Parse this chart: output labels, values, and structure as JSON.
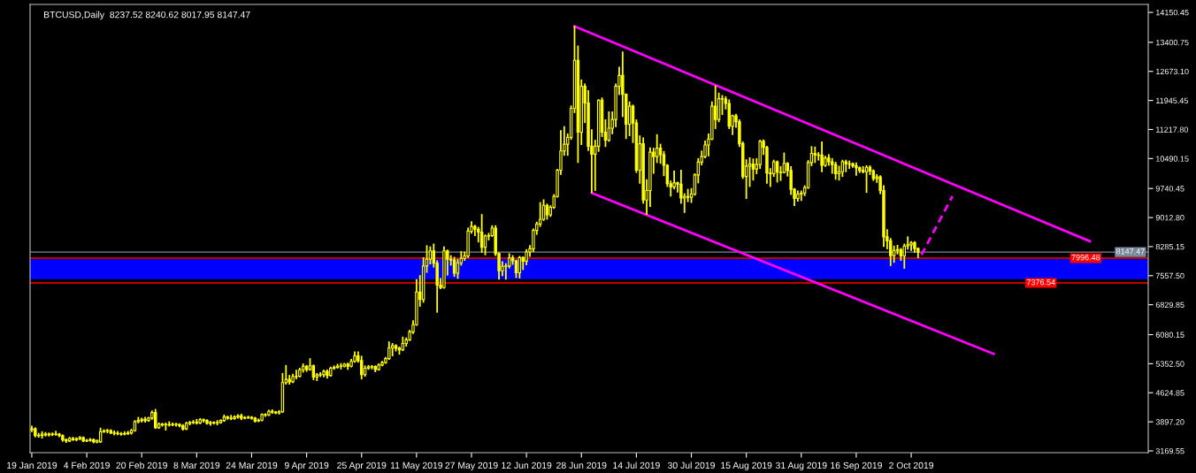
{
  "chart_data": {
    "type": "candlestick",
    "title": "BTCUSD,Daily  8237.52 8240.62 8017.95 8147.47",
    "color": "#ffff00",
    "x": [
      "2019-01-19",
      "2019-01-20",
      "2019-01-21",
      "2019-01-22",
      "2019-01-23",
      "2019-01-24",
      "2019-01-25",
      "2019-01-26",
      "2019-01-27",
      "2019-01-28",
      "2019-01-29",
      "2019-01-30",
      "2019-01-31",
      "2019-02-01",
      "2019-02-02",
      "2019-02-03",
      "2019-02-04",
      "2019-02-05",
      "2019-02-06",
      "2019-02-07",
      "2019-02-08",
      "2019-02-09",
      "2019-02-10",
      "2019-02-11",
      "2019-02-12",
      "2019-02-13",
      "2019-02-14",
      "2019-02-15",
      "2019-02-16",
      "2019-02-17",
      "2019-02-18",
      "2019-02-19",
      "2019-02-20",
      "2019-02-21",
      "2019-02-22",
      "2019-02-23",
      "2019-02-24",
      "2019-02-25",
      "2019-02-26",
      "2019-02-27",
      "2019-02-28",
      "2019-03-01",
      "2019-03-02",
      "2019-03-03",
      "2019-03-04",
      "2019-03-05",
      "2019-03-06",
      "2019-03-07",
      "2019-03-08",
      "2019-03-09",
      "2019-03-10",
      "2019-03-11",
      "2019-03-12",
      "2019-03-13",
      "2019-03-14",
      "2019-03-15",
      "2019-03-16",
      "2019-03-17",
      "2019-03-18",
      "2019-03-19",
      "2019-03-20",
      "2019-03-21",
      "2019-03-22",
      "2019-03-23",
      "2019-03-24",
      "2019-03-25",
      "2019-03-26",
      "2019-03-27",
      "2019-03-28",
      "2019-03-29",
      "2019-03-30",
      "2019-03-31",
      "2019-04-01",
      "2019-04-02",
      "2019-04-03",
      "2019-04-04",
      "2019-04-05",
      "2019-04-06",
      "2019-04-07",
      "2019-04-08",
      "2019-04-09",
      "2019-04-10",
      "2019-04-11",
      "2019-04-12",
      "2019-04-13",
      "2019-04-14",
      "2019-04-15",
      "2019-04-16",
      "2019-04-17",
      "2019-04-18",
      "2019-04-19",
      "2019-04-20",
      "2019-04-21",
      "2019-04-22",
      "2019-04-23",
      "2019-04-24",
      "2019-04-25",
      "2019-04-26",
      "2019-04-27",
      "2019-04-28",
      "2019-04-29",
      "2019-04-30",
      "2019-05-01",
      "2019-05-02",
      "2019-05-03",
      "2019-05-04",
      "2019-05-05",
      "2019-05-06",
      "2019-05-07",
      "2019-05-08",
      "2019-05-09",
      "2019-05-10",
      "2019-05-11",
      "2019-05-12",
      "2019-05-13",
      "2019-05-14",
      "2019-05-15",
      "2019-05-16",
      "2019-05-17",
      "2019-05-18",
      "2019-05-19",
      "2019-05-20",
      "2019-05-21",
      "2019-05-22",
      "2019-05-23",
      "2019-05-24",
      "2019-05-25",
      "2019-05-26",
      "2019-05-27",
      "2019-05-28",
      "2019-05-29",
      "2019-05-30",
      "2019-05-31",
      "2019-06-01",
      "2019-06-02",
      "2019-06-03",
      "2019-06-04",
      "2019-06-05",
      "2019-06-06",
      "2019-06-07",
      "2019-06-08",
      "2019-06-09",
      "2019-06-10",
      "2019-06-11",
      "2019-06-12",
      "2019-06-13",
      "2019-06-14",
      "2019-06-15",
      "2019-06-16",
      "2019-06-17",
      "2019-06-18",
      "2019-06-19",
      "2019-06-20",
      "2019-06-21",
      "2019-06-22",
      "2019-06-23",
      "2019-06-24",
      "2019-06-25",
      "2019-06-26",
      "2019-06-27",
      "2019-06-28",
      "2019-06-29",
      "2019-06-30",
      "2019-07-01",
      "2019-07-02",
      "2019-07-03",
      "2019-07-04",
      "2019-07-05",
      "2019-07-06",
      "2019-07-07",
      "2019-07-08",
      "2019-07-09",
      "2019-07-10",
      "2019-07-11",
      "2019-07-12",
      "2019-07-13",
      "2019-07-14",
      "2019-07-15",
      "2019-07-16",
      "2019-07-17",
      "2019-07-18",
      "2019-07-19",
      "2019-07-20",
      "2019-07-21",
      "2019-07-22",
      "2019-07-23",
      "2019-07-24",
      "2019-07-25",
      "2019-07-26",
      "2019-07-27",
      "2019-07-28",
      "2019-07-29",
      "2019-07-30",
      "2019-07-31",
      "2019-08-01",
      "2019-08-02",
      "2019-08-03",
      "2019-08-04",
      "2019-08-05",
      "2019-08-06",
      "2019-08-07",
      "2019-08-08",
      "2019-08-09",
      "2019-08-10",
      "2019-08-11",
      "2019-08-12",
      "2019-08-13",
      "2019-08-14",
      "2019-08-15",
      "2019-08-16",
      "2019-08-17",
      "2019-08-18",
      "2019-08-19",
      "2019-08-20",
      "2019-08-21",
      "2019-08-22",
      "2019-08-23",
      "2019-08-24",
      "2019-08-25",
      "2019-08-26",
      "2019-08-27",
      "2019-08-28",
      "2019-08-29",
      "2019-08-30",
      "2019-08-31",
      "2019-09-01",
      "2019-09-02",
      "2019-09-03",
      "2019-09-04",
      "2019-09-05",
      "2019-09-06",
      "2019-09-07",
      "2019-09-08",
      "2019-09-09",
      "2019-09-10",
      "2019-09-11",
      "2019-09-12",
      "2019-09-13",
      "2019-09-14",
      "2019-09-15",
      "2019-09-16",
      "2019-09-17",
      "2019-09-18",
      "2019-09-19",
      "2019-09-20",
      "2019-09-21",
      "2019-09-22",
      "2019-09-23",
      "2019-09-24",
      "2019-09-25",
      "2019-09-26",
      "2019-09-27",
      "2019-09-28",
      "2019-09-29",
      "2019-09-30",
      "2019-10-01",
      "2019-10-02",
      "2019-10-03",
      "2019-10-04"
    ],
    "ohlc": [
      [
        3700,
        3780,
        3660,
        3720
      ],
      [
        3720,
        3740,
        3530,
        3550
      ],
      [
        3550,
        3600,
        3520,
        3560
      ],
      [
        3560,
        3640,
        3500,
        3590
      ],
      [
        3590,
        3620,
        3550,
        3570
      ],
      [
        3570,
        3610,
        3550,
        3590
      ],
      [
        3590,
        3610,
        3560,
        3580
      ],
      [
        3580,
        3650,
        3570,
        3590
      ],
      [
        3590,
        3600,
        3530,
        3550
      ],
      [
        3550,
        3560,
        3420,
        3450
      ],
      [
        3450,
        3460,
        3390,
        3420
      ],
      [
        3420,
        3500,
        3410,
        3480
      ],
      [
        3480,
        3500,
        3440,
        3450
      ],
      [
        3450,
        3490,
        3430,
        3470
      ],
      [
        3470,
        3520,
        3460,
        3500
      ],
      [
        3500,
        3510,
        3410,
        3420
      ],
      [
        3420,
        3450,
        3410,
        3430
      ],
      [
        3430,
        3470,
        3420,
        3450
      ],
      [
        3450,
        3460,
        3380,
        3400
      ],
      [
        3390,
        3430,
        3380,
        3430
      ],
      [
        3400,
        3730,
        3390,
        3650
      ],
      [
        3650,
        3690,
        3640,
        3670
      ],
      [
        3670,
        3700,
        3630,
        3680
      ],
      [
        3680,
        3690,
        3610,
        3620
      ],
      [
        3620,
        3660,
        3580,
        3610
      ],
      [
        3610,
        3650,
        3580,
        3600
      ],
      [
        3600,
        3620,
        3570,
        3590
      ],
      [
        3590,
        3640,
        3580,
        3600
      ],
      [
        3600,
        3650,
        3590,
        3620
      ],
      [
        3620,
        3700,
        3600,
        3680
      ],
      [
        3680,
        3920,
        3670,
        3900
      ],
      [
        3900,
        4000,
        3880,
        3930
      ],
      [
        3930,
        3980,
        3900,
        3960
      ],
      [
        3960,
        4000,
        3900,
        3930
      ],
      [
        3930,
        4000,
        3920,
        3990
      ],
      [
        3990,
        4160,
        3970,
        4130
      ],
      [
        4130,
        4200,
        3740,
        3750
      ],
      [
        3750,
        3860,
        3740,
        3840
      ],
      [
        3840,
        3850,
        3800,
        3820
      ],
      [
        3820,
        3860,
        3700,
        3830
      ],
      [
        3830,
        3890,
        3800,
        3820
      ],
      [
        3820,
        3860,
        3810,
        3830
      ],
      [
        3830,
        3850,
        3800,
        3840
      ],
      [
        3830,
        3840,
        3780,
        3800
      ],
      [
        3800,
        3820,
        3700,
        3720
      ],
      [
        3720,
        3880,
        3710,
        3860
      ],
      [
        3860,
        3900,
        3830,
        3880
      ],
      [
        3880,
        3920,
        3860,
        3890
      ],
      [
        3890,
        3950,
        3850,
        3870
      ],
      [
        3870,
        3970,
        3860,
        3950
      ],
      [
        3950,
        3960,
        3900,
        3930
      ],
      [
        3930,
        3940,
        3850,
        3860
      ],
      [
        3860,
        3900,
        3820,
        3880
      ],
      [
        3880,
        3890,
        3850,
        3870
      ],
      [
        3870,
        3920,
        3830,
        3880
      ],
      [
        3880,
        3940,
        3870,
        3930
      ],
      [
        3930,
        4060,
        3920,
        4020
      ],
      [
        4020,
        4030,
        3970,
        3990
      ],
      [
        3990,
        4050,
        3960,
        3980
      ],
      [
        3980,
        4040,
        3970,
        4020
      ],
      [
        4020,
        4070,
        4000,
        4050
      ],
      [
        4050,
        4080,
        3960,
        3990
      ],
      [
        3990,
        4020,
        3980,
        4000
      ],
      [
        4000,
        4030,
        3990,
        4010
      ],
      [
        4010,
        4020,
        3970,
        3990
      ],
      [
        3990,
        4000,
        3900,
        3920
      ],
      [
        3920,
        3960,
        3910,
        3940
      ],
      [
        3940,
        4090,
        3930,
        4080
      ],
      [
        4080,
        4090,
        4040,
        4070
      ],
      [
        4070,
        4180,
        4060,
        4160
      ],
      [
        4160,
        4190,
        4120,
        4140
      ],
      [
        4140,
        4150,
        4110,
        4120
      ],
      [
        4120,
        4170,
        4100,
        4150
      ],
      [
        4150,
        5100,
        4140,
        4880
      ],
      [
        4880,
        5300,
        4850,
        4960
      ],
      [
        4960,
        5050,
        4850,
        4900
      ],
      [
        4900,
        5080,
        4890,
        5030
      ],
      [
        5030,
        5180,
        4980,
        5040
      ],
      [
        5040,
        5230,
        5030,
        5200
      ],
      [
        5200,
        5340,
        5150,
        5290
      ],
      [
        5290,
        5300,
        5170,
        5210
      ],
      [
        5210,
        5470,
        5200,
        5300
      ],
      [
        5300,
        5310,
        4960,
        5020
      ],
      [
        5020,
        5100,
        4940,
        5070
      ],
      [
        5070,
        5120,
        5040,
        5080
      ],
      [
        5080,
        5180,
        5030,
        5160
      ],
      [
        5160,
        5190,
        5000,
        5060
      ],
      [
        5060,
        5260,
        5050,
        5240
      ],
      [
        5240,
        5290,
        5220,
        5260
      ],
      [
        5260,
        5330,
        5250,
        5290
      ],
      [
        5290,
        5350,
        5230,
        5300
      ],
      [
        5290,
        5350,
        5280,
        5340
      ],
      [
        5340,
        5360,
        5220,
        5290
      ],
      [
        5290,
        5450,
        5280,
        5410
      ],
      [
        5410,
        5640,
        5400,
        5550
      ],
      [
        5550,
        5640,
        5400,
        5430
      ],
      [
        5430,
        5530,
        4980,
        5080
      ],
      [
        5080,
        5290,
        5050,
        5240
      ],
      [
        5240,
        5300,
        5220,
        5270
      ],
      [
        5270,
        5300,
        5230,
        5280
      ],
      [
        5280,
        5290,
        5160,
        5210
      ],
      [
        5210,
        5340,
        5200,
        5320
      ],
      [
        5320,
        5400,
        5310,
        5380
      ],
      [
        5380,
        5500,
        5370,
        5480
      ],
      [
        5480,
        5890,
        5470,
        5750
      ],
      [
        5750,
        5850,
        5560,
        5800
      ],
      [
        5800,
        5820,
        5680,
        5740
      ],
      [
        5740,
        5760,
        5600,
        5700
      ],
      [
        5700,
        6010,
        5690,
        5860
      ],
      [
        5860,
        5990,
        5800,
        5950
      ],
      [
        5950,
        6180,
        5940,
        6150
      ],
      [
        6150,
        6420,
        6120,
        6330
      ],
      [
        6330,
        7450,
        6320,
        7150
      ],
      [
        7150,
        7550,
        6800,
        6960
      ],
      [
        6960,
        8000,
        6900,
        7800
      ],
      [
        7800,
        8300,
        7650,
        7970
      ],
      [
        7970,
        8270,
        7860,
        8180
      ],
      [
        8180,
        8340,
        7780,
        7870
      ],
      [
        7870,
        7920,
        6650,
        7320
      ],
      [
        7320,
        7480,
        7240,
        7260
      ],
      [
        7260,
        8270,
        7250,
        8180
      ],
      [
        8180,
        8190,
        7580,
        7970
      ],
      [
        7970,
        8050,
        7830,
        7950
      ],
      [
        7950,
        8010,
        7550,
        7620
      ],
      [
        7620,
        7960,
        7500,
        7880
      ],
      [
        7880,
        8150,
        7830,
        7990
      ],
      [
        7990,
        8140,
        7950,
        8050
      ],
      [
        8050,
        8740,
        8020,
        8670
      ],
      [
        8670,
        8900,
        8630,
        8790
      ],
      [
        8790,
        8810,
        8570,
        8720
      ],
      [
        8720,
        8760,
        8410,
        8650
      ],
      [
        8650,
        9080,
        8150,
        8270
      ],
      [
        8270,
        8570,
        8090,
        8550
      ],
      [
        8550,
        8610,
        8460,
        8560
      ],
      [
        8560,
        8800,
        8550,
        8750
      ],
      [
        8750,
        8800,
        8070,
        8110
      ],
      [
        8110,
        8120,
        7480,
        7680
      ],
      [
        7680,
        7900,
        7570,
        7790
      ],
      [
        7790,
        7850,
        7480,
        7800
      ],
      [
        7800,
        8100,
        7760,
        8000
      ],
      [
        8000,
        8050,
        7850,
        7930
      ],
      [
        7930,
        7940,
        7520,
        7630
      ],
      [
        7630,
        8030,
        7510,
        8010
      ],
      [
        8010,
        8020,
        7720,
        7920
      ],
      [
        7920,
        8200,
        7840,
        8150
      ],
      [
        8150,
        8300,
        8050,
        8230
      ],
      [
        8230,
        8720,
        8170,
        8690
      ],
      [
        8690,
        8890,
        8600,
        8850
      ],
      [
        8850,
        9380,
        8800,
        8970
      ],
      [
        8970,
        9450,
        8950,
        9320
      ],
      [
        9320,
        9340,
        8980,
        9080
      ],
      [
        9080,
        9300,
        9050,
        9270
      ],
      [
        9270,
        9580,
        9250,
        9540
      ],
      [
        9540,
        10210,
        9530,
        10200
      ],
      [
        10200,
        11180,
        10100,
        10680
      ],
      [
        10680,
        11280,
        10580,
        10850
      ],
      [
        10850,
        11100,
        10580,
        11020
      ],
      [
        11020,
        11800,
        10980,
        11750
      ],
      [
        11750,
        13800,
        11650,
        12950
      ],
      [
        12950,
        13300,
        10400,
        11150
      ],
      [
        11150,
        12450,
        10850,
        12300
      ],
      [
        12300,
        12350,
        11400,
        11880
      ],
      [
        11880,
        12180,
        10700,
        10800
      ],
      [
        10800,
        11200,
        9650,
        10600
      ],
      [
        10600,
        10940,
        9700,
        10800
      ],
      [
        10800,
        11950,
        10680,
        11950
      ],
      [
        11950,
        12000,
        11050,
        11150
      ],
      [
        11150,
        11450,
        10800,
        10950
      ],
      [
        10950,
        11650,
        10930,
        11250
      ],
      [
        11250,
        11650,
        11120,
        11470
      ],
      [
        11470,
        12350,
        11300,
        12300
      ],
      [
        12300,
        12770,
        12100,
        12570
      ],
      [
        12570,
        13150,
        11550,
        12100
      ],
      [
        12100,
        12100,
        11000,
        11350
      ],
      [
        11350,
        11900,
        11070,
        11800
      ],
      [
        11800,
        11820,
        10900,
        11380
      ],
      [
        11380,
        11450,
        10150,
        10200
      ],
      [
        10200,
        11050,
        9880,
        10860
      ],
      [
        10860,
        11000,
        9380,
        9450
      ],
      [
        9450,
        9950,
        9100,
        9690
      ],
      [
        9690,
        10750,
        9300,
        10650
      ],
      [
        10650,
        10740,
        10130,
        10540
      ],
      [
        10540,
        11080,
        10400,
        10750
      ],
      [
        10750,
        10840,
        10380,
        10590
      ],
      [
        10590,
        10660,
        10070,
        10320
      ],
      [
        10320,
        10330,
        9800,
        9860
      ],
      [
        9860,
        9920,
        9560,
        9780
      ],
      [
        9780,
        10170,
        9740,
        9880
      ],
      [
        9880,
        9890,
        9660,
        9850
      ],
      [
        9850,
        10190,
        9380,
        9500
      ],
      [
        9500,
        9600,
        9150,
        9540
      ],
      [
        9540,
        9710,
        9420,
        9520
      ],
      [
        9520,
        9730,
        9400,
        9600
      ],
      [
        9600,
        10100,
        9580,
        10080
      ],
      [
        10080,
        10480,
        9890,
        10400
      ],
      [
        10400,
        10670,
        10340,
        10540
      ],
      [
        10540,
        10920,
        10520,
        10830
      ],
      [
        10830,
        11100,
        10570,
        10980
      ],
      [
        10980,
        11900,
        10970,
        11800
      ],
      [
        11800,
        12300,
        11250,
        11470
      ],
      [
        11470,
        12120,
        11420,
        11990
      ],
      [
        11990,
        12060,
        11600,
        11980
      ],
      [
        11980,
        12030,
        11740,
        11870
      ],
      [
        11870,
        11950,
        11250,
        11300
      ],
      [
        11300,
        11570,
        11100,
        11560
      ],
      [
        11560,
        11590,
        11280,
        11410
      ],
      [
        11410,
        11450,
        10800,
        10860
      ],
      [
        10860,
        10900,
        10000,
        10040
      ],
      [
        10040,
        10450,
        9500,
        10300
      ],
      [
        10300,
        10500,
        9800,
        10350
      ],
      [
        10350,
        10470,
        9960,
        10230
      ],
      [
        10230,
        10480,
        10120,
        10340
      ],
      [
        10340,
        10940,
        10250,
        10920
      ],
      [
        10920,
        10950,
        10600,
        10770
      ],
      [
        10770,
        10790,
        9880,
        10130
      ],
      [
        10130,
        10230,
        9800,
        10110
      ],
      [
        10110,
        10440,
        10050,
        10410
      ],
      [
        10410,
        10420,
        9910,
        10150
      ],
      [
        10150,
        10280,
        9950,
        10140
      ],
      [
        10140,
        10620,
        10140,
        10370
      ],
      [
        10370,
        10380,
        10060,
        10190
      ],
      [
        10190,
        10280,
        9600,
        9720
      ],
      [
        9720,
        9730,
        9320,
        9490
      ],
      [
        9490,
        9670,
        9430,
        9600
      ],
      [
        9600,
        9670,
        9450,
        9630
      ],
      [
        9630,
        9800,
        9570,
        9760
      ],
      [
        9760,
        10430,
        9750,
        10390
      ],
      [
        10390,
        10780,
        10320,
        10620
      ],
      [
        10620,
        10770,
        10400,
        10580
      ],
      [
        10580,
        10630,
        10460,
        10570
      ],
      [
        10580,
        10900,
        10170,
        10320
      ],
      [
        10320,
        10540,
        10300,
        10500
      ],
      [
        10500,
        10580,
        10330,
        10410
      ],
      [
        10410,
        10480,
        10130,
        10340
      ],
      [
        10340,
        10390,
        9980,
        10110
      ],
      [
        10110,
        10290,
        9960,
        10160
      ],
      [
        10160,
        10440,
        10050,
        10410
      ],
      [
        10410,
        10440,
        10170,
        10360
      ],
      [
        10360,
        10420,
        10250,
        10350
      ],
      [
        10360,
        10370,
        10280,
        10310
      ],
      [
        10310,
        10370,
        10080,
        10260
      ],
      [
        10260,
        10270,
        10150,
        10190
      ],
      [
        10190,
        10280,
        10140,
        10160
      ],
      [
        10160,
        10300,
        9650,
        10270
      ],
      [
        10270,
        10300,
        10100,
        10180
      ],
      [
        10180,
        10200,
        9950,
        9990
      ],
      [
        9990,
        10080,
        9900,
        10030
      ],
      [
        10030,
        10050,
        9620,
        9690
      ],
      [
        9690,
        9800,
        8300,
        8530
      ],
      [
        8530,
        8700,
        8240,
        8430
      ],
      [
        8430,
        8480,
        7820,
        8060
      ],
      [
        8060,
        8290,
        7900,
        8190
      ],
      [
        8190,
        8310,
        8110,
        8210
      ],
      [
        8210,
        8230,
        7950,
        8050
      ],
      [
        8050,
        8340,
        7750,
        8300
      ],
      [
        8300,
        8520,
        8230,
        8330
      ],
      [
        8330,
        8400,
        8200,
        8380
      ],
      [
        8380,
        8400,
        8150,
        8237.52
      ],
      [
        8237.52,
        8240.62,
        8017.95,
        8147.47
      ]
    ],
    "series": [
      {
        "type": "line",
        "color": "#ff00ff",
        "line_style": "solid",
        "x": [
          "2019-06-26",
          "2019-11-23"
        ],
        "values": [
          13800,
          8420
        ]
      },
      {
        "type": "line",
        "color": "#ff00ff",
        "line_style": "solid",
        "x": [
          "2019-07-01",
          "2019-10-26"
        ],
        "values": [
          9630,
          5600
        ]
      },
      {
        "type": "line",
        "color": "#ff00ff",
        "line_style": "dashed",
        "x": [
          "2019-10-05",
          "2019-10-14"
        ],
        "values": [
          8080,
          9550
        ]
      }
    ],
    "bands": [
      {
        "axis": "y",
        "from": 7470,
        "to": 7970,
        "color": "#0000ff"
      }
    ],
    "ref_lines": [
      {
        "axis": "y",
        "value": 8147.47,
        "label": "8147.47",
        "color": "#778899"
      },
      {
        "axis": "y",
        "value": 7996.48,
        "label": "7996.48",
        "color": "#ff0000"
      },
      {
        "axis": "y",
        "value": 7376.54,
        "label": "7376.54",
        "color": "#ff0000"
      }
    ],
    "xlim": [
      "2019-01-18T12:00",
      "2019-12-10"
    ],
    "xticks": [
      {
        "value": "2019-01-19",
        "label": "19 Jan 2019"
      },
      {
        "value": "2019-02-04",
        "label": "4 Feb 2019"
      },
      {
        "value": "2019-02-20",
        "label": "20 Feb 2019"
      },
      {
        "value": "2019-03-08",
        "label": "8 Mar 2019"
      },
      {
        "value": "2019-03-24",
        "label": "24 Mar 2019"
      },
      {
        "value": "2019-04-09",
        "label": "9 Apr 2019"
      },
      {
        "value": "2019-04-25",
        "label": "25 Apr 2019"
      },
      {
        "value": "2019-05-11",
        "label": "11 May 2019"
      },
      {
        "value": "2019-05-27",
        "label": "27 May 2019"
      },
      {
        "value": "2019-06-12",
        "label": "12 Jun 2019"
      },
      {
        "value": "2019-06-28",
        "label": "28 Jun 2019"
      },
      {
        "value": "2019-07-14",
        "label": "14 Jul 2019"
      },
      {
        "value": "2019-07-30",
        "label": "30 Jul 2019"
      },
      {
        "value": "2019-08-15",
        "label": "15 Aug 2019"
      },
      {
        "value": "2019-08-31",
        "label": "31 Aug 2019"
      },
      {
        "value": "2019-09-16",
        "label": "16 Sep 2019"
      },
      {
        "value": "2019-10-02",
        "label": "2 Oct 2019"
      }
    ],
    "ylim": [
      3125,
      14350
    ],
    "yticks": [
      {
        "value": 14150.45,
        "label": "14150.45"
      },
      {
        "value": 13400.75,
        "label": "13400.75"
      },
      {
        "value": 12673.1,
        "label": "12673.10"
      },
      {
        "value": 11945.45,
        "label": "11945.45"
      },
      {
        "value": 11217.8,
        "label": "11217.80"
      },
      {
        "value": 10490.15,
        "label": "10490.15"
      },
      {
        "value": 9740.45,
        "label": "9740.45"
      },
      {
        "value": 9012.8,
        "label": "9012.80"
      },
      {
        "value": 8285.15,
        "label": "8285.15"
      },
      {
        "value": 7557.5,
        "label": "7557.50"
      },
      {
        "value": 6829.85,
        "label": "6829.85"
      },
      {
        "value": 6080.15,
        "label": "6080.15"
      },
      {
        "value": 5352.5,
        "label": "5352.50"
      },
      {
        "value": 4624.85,
        "label": "4624.85"
      },
      {
        "value": 3897.2,
        "label": "3897.20"
      },
      {
        "value": 3169.55,
        "label": "3169.55"
      }
    ],
    "grid": false,
    "legend": false
  }
}
